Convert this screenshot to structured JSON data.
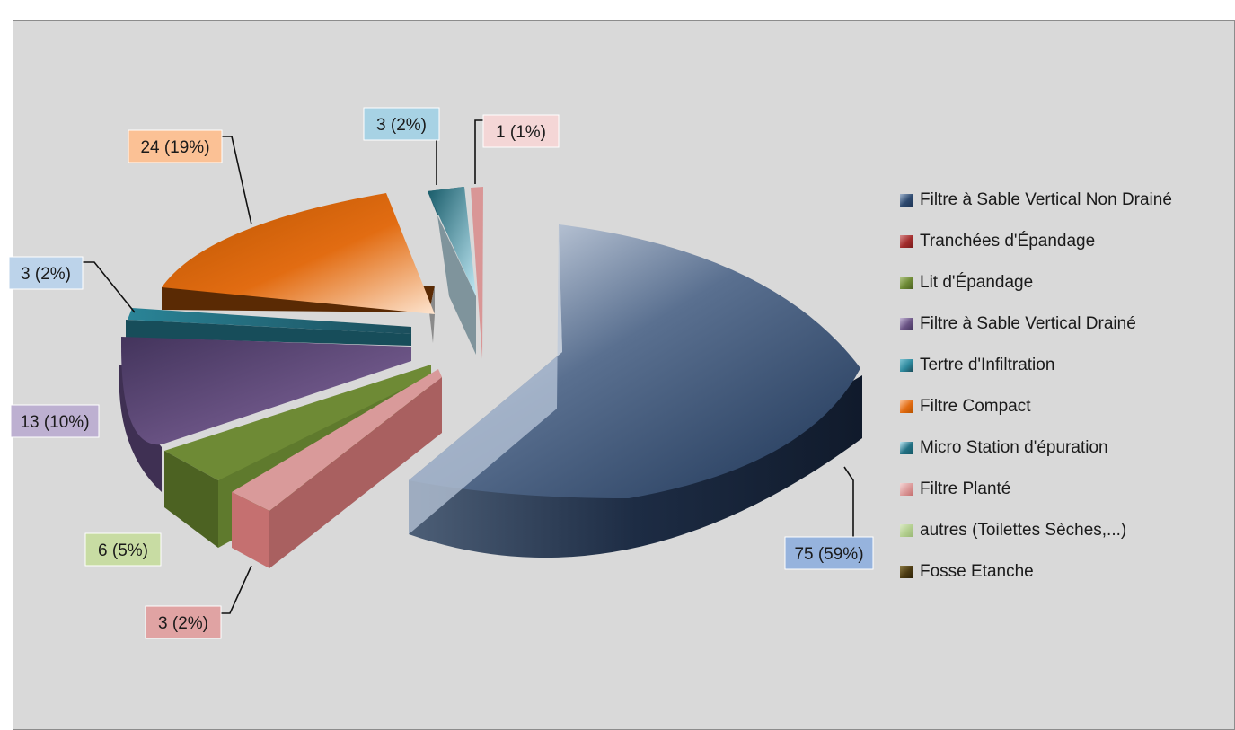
{
  "chart_data": {
    "type": "pie",
    "style": "3d-exploded",
    "categories": [
      "Filtre à Sable Vertical Non Drainé",
      "Tranchées d'Épandage",
      "Lit d'Épandage",
      "Filtre à Sable Vertical Drainé",
      "Tertre d'Infiltration",
      "Filtre Compact",
      "Micro Station d'épuration",
      "Filtre Planté",
      "autres (Toilettes Sèches,...)",
      "Fosse Etanche"
    ],
    "values": [
      75,
      3,
      6,
      13,
      3,
      24,
      3,
      1,
      0,
      0
    ],
    "data_labels": [
      "75 (59%)",
      "3 (2%)",
      "6 (5%)",
      "13 (10%)",
      "3 (2%)",
      "24 (19%)",
      "3 (2%)",
      "1 (1%)",
      "",
      ""
    ],
    "colors": [
      "#2e4a70",
      "#c97f7f",
      "#6e8a35",
      "#6b5485",
      "#2f8a9e",
      "#e26c12",
      "#237184",
      "#dc9a9a",
      "#b3cf8f",
      "#4c3b12"
    ],
    "label_fills": [
      "#96b3dd",
      "#e0a3a3",
      "#c8dca3",
      "#bdb0d1",
      "#bcd3ea",
      "#fbc195",
      "#a7d2e4",
      "#f4d6d6",
      "",
      ""
    ],
    "legend_position": "right",
    "title": "",
    "xlabel": "",
    "ylabel": ""
  }
}
